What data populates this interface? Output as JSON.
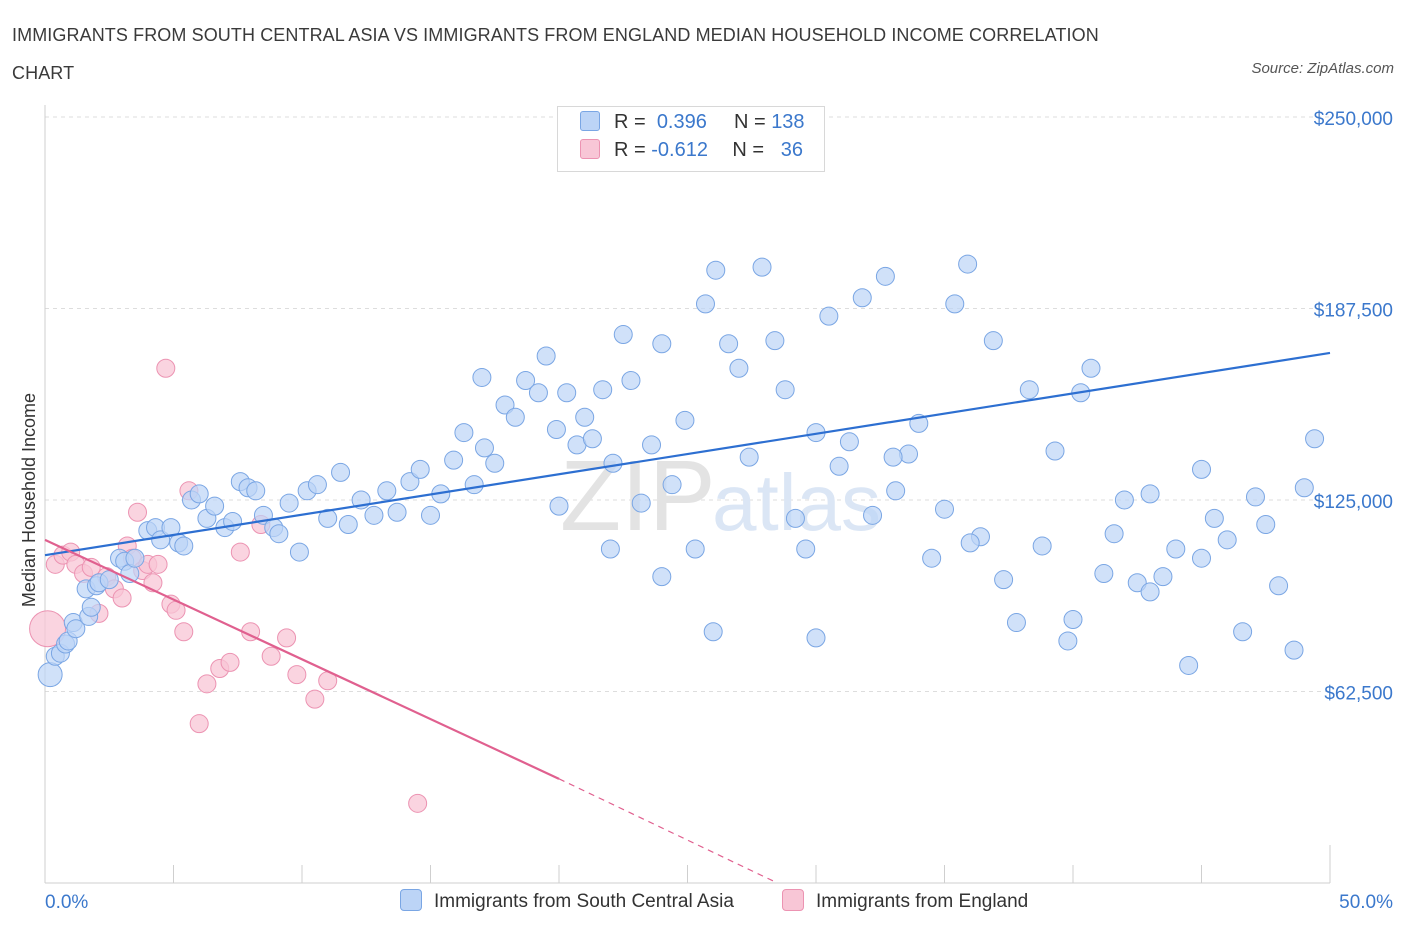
{
  "header": {
    "title": "IMMIGRANTS FROM SOUTH CENTRAL ASIA VS IMMIGRANTS FROM ENGLAND MEDIAN HOUSEHOLD INCOME CORRELATION CHART",
    "source": "Source: ZipAtlas.com"
  },
  "legend": {
    "r_label": "R =",
    "n_label": "N =",
    "series1": {
      "r": "0.396",
      "n": "138"
    },
    "series2": {
      "r": "-0.612",
      "n": "36"
    }
  },
  "bottom_legend": {
    "series1": "Immigrants from South Central Asia",
    "series2": "Immigrants from England"
  },
  "watermark": {
    "zip": "ZIP",
    "atlas": "atlas"
  },
  "colors": {
    "blue_fill": "#bcd4f6",
    "blue_stroke": "#7aa6e4",
    "blue_line": "#2d6fd1",
    "pink_fill": "#f8c6d6",
    "pink_stroke": "#ec93b2",
    "pink_line": "#e0608f",
    "tick_text": "#3b78cc",
    "grid": "#dddddd"
  },
  "chart_data": {
    "type": "scatter",
    "title": "IMMIGRANTS FROM SOUTH CENTRAL ASIA VS IMMIGRANTS FROM ENGLAND MEDIAN HOUSEHOLD INCOME CORRELATION CHART",
    "xlabel": "",
    "ylabel": "Median Household Income",
    "xlim": [
      0,
      50
    ],
    "ylim": [
      0,
      250000
    ],
    "x_tick_labels": [
      "0.0%",
      "50.0%"
    ],
    "y_ticks": [
      62500,
      125000,
      187500,
      250000
    ],
    "y_tick_labels": [
      "$62,500",
      "$125,000",
      "$187,500",
      "$250,000"
    ],
    "grid": true,
    "series": [
      {
        "name": "Immigrants from South Central Asia",
        "r": 0.396,
        "n": 138,
        "trend": [
          [
            0,
            107000
          ],
          [
            50,
            173000
          ]
        ],
        "points": [
          [
            0.2,
            68000
          ],
          [
            0.4,
            74000
          ],
          [
            0.6,
            75000
          ],
          [
            0.8,
            78000
          ],
          [
            0.9,
            79000
          ],
          [
            1.1,
            85000
          ],
          [
            1.2,
            83000
          ],
          [
            1.7,
            87000
          ],
          [
            1.8,
            90000
          ],
          [
            1.6,
            96000
          ],
          [
            2.0,
            97000
          ],
          [
            2.1,
            98000
          ],
          [
            2.5,
            99000
          ],
          [
            2.9,
            106000
          ],
          [
            3.1,
            105000
          ],
          [
            3.3,
            101000
          ],
          [
            3.5,
            106000
          ],
          [
            4.0,
            115000
          ],
          [
            4.3,
            116000
          ],
          [
            4.5,
            112000
          ],
          [
            4.9,
            116000
          ],
          [
            5.2,
            111000
          ],
          [
            5.4,
            110000
          ],
          [
            5.7,
            125000
          ],
          [
            6.0,
            127000
          ],
          [
            6.3,
            119000
          ],
          [
            6.6,
            123000
          ],
          [
            7.0,
            116000
          ],
          [
            7.3,
            118000
          ],
          [
            7.6,
            131000
          ],
          [
            7.9,
            129000
          ],
          [
            8.2,
            128000
          ],
          [
            8.5,
            120000
          ],
          [
            8.9,
            116000
          ],
          [
            9.1,
            114000
          ],
          [
            9.5,
            124000
          ],
          [
            9.9,
            108000
          ],
          [
            10.2,
            128000
          ],
          [
            10.6,
            130000
          ],
          [
            11.0,
            119000
          ],
          [
            11.5,
            134000
          ],
          [
            11.8,
            117000
          ],
          [
            12.3,
            125000
          ],
          [
            12.8,
            120000
          ],
          [
            13.3,
            128000
          ],
          [
            13.7,
            121000
          ],
          [
            14.2,
            131000
          ],
          [
            14.6,
            135000
          ],
          [
            15.0,
            120000
          ],
          [
            15.4,
            127000
          ],
          [
            15.9,
            138000
          ],
          [
            16.3,
            147000
          ],
          [
            16.7,
            130000
          ],
          [
            17.1,
            142000
          ],
          [
            17.5,
            137000
          ],
          [
            17.9,
            156000
          ],
          [
            18.3,
            152000
          ],
          [
            18.7,
            164000
          ],
          [
            19.2,
            160000
          ],
          [
            19.5,
            172000
          ],
          [
            19.9,
            148000
          ],
          [
            20.3,
            160000
          ],
          [
            20.7,
            143000
          ],
          [
            21.0,
            152000
          ],
          [
            21.3,
            145000
          ],
          [
            21.7,
            161000
          ],
          [
            22.1,
            137000
          ],
          [
            22.5,
            179000
          ],
          [
            22.8,
            164000
          ],
          [
            23.2,
            124000
          ],
          [
            23.6,
            143000
          ],
          [
            24.0,
            176000
          ],
          [
            24.4,
            130000
          ],
          [
            24.9,
            151000
          ],
          [
            25.3,
            109000
          ],
          [
            25.7,
            189000
          ],
          [
            26.1,
            200000
          ],
          [
            26.6,
            176000
          ],
          [
            27.0,
            168000
          ],
          [
            27.4,
            139000
          ],
          [
            27.9,
            201000
          ],
          [
            28.4,
            177000
          ],
          [
            28.8,
            161000
          ],
          [
            29.2,
            119000
          ],
          [
            29.6,
            109000
          ],
          [
            30.0,
            147000
          ],
          [
            30.5,
            185000
          ],
          [
            30.9,
            136000
          ],
          [
            31.3,
            144000
          ],
          [
            31.8,
            191000
          ],
          [
            32.2,
            120000
          ],
          [
            32.7,
            198000
          ],
          [
            33.1,
            128000
          ],
          [
            33.6,
            140000
          ],
          [
            34.0,
            150000
          ],
          [
            34.5,
            106000
          ],
          [
            35.0,
            122000
          ],
          [
            35.4,
            189000
          ],
          [
            35.9,
            202000
          ],
          [
            36.4,
            113000
          ],
          [
            36.9,
            177000
          ],
          [
            37.3,
            99000
          ],
          [
            37.8,
            85000
          ],
          [
            38.3,
            161000
          ],
          [
            38.8,
            110000
          ],
          [
            39.3,
            141000
          ],
          [
            39.8,
            79000
          ],
          [
            40.3,
            160000
          ],
          [
            40.7,
            168000
          ],
          [
            41.2,
            101000
          ],
          [
            41.6,
            114000
          ],
          [
            42.0,
            125000
          ],
          [
            42.5,
            98000
          ],
          [
            43.0,
            127000
          ],
          [
            43.5,
            100000
          ],
          [
            44.0,
            109000
          ],
          [
            44.5,
            71000
          ],
          [
            45.0,
            135000
          ],
          [
            45.5,
            119000
          ],
          [
            46.0,
            112000
          ],
          [
            46.6,
            82000
          ],
          [
            47.1,
            126000
          ],
          [
            47.5,
            117000
          ],
          [
            48.0,
            97000
          ],
          [
            48.6,
            76000
          ],
          [
            49.0,
            129000
          ],
          [
            49.4,
            145000
          ],
          [
            17.0,
            165000
          ],
          [
            26.0,
            82000
          ],
          [
            30.0,
            80000
          ],
          [
            33.0,
            139000
          ],
          [
            36.0,
            111000
          ],
          [
            40.0,
            86000
          ],
          [
            43.0,
            95000
          ],
          [
            45.0,
            106000
          ],
          [
            20.0,
            123000
          ],
          [
            22.0,
            109000
          ],
          [
            24.0,
            100000
          ]
        ]
      },
      {
        "name": "Immigrants from England",
        "r": -0.612,
        "n": 36,
        "trend": [
          [
            0,
            112000
          ],
          [
            20,
            34000
          ]
        ],
        "trend_extension": [
          [
            20,
            34000
          ],
          [
            28.5,
            0
          ]
        ],
        "points": [
          [
            0.1,
            83000
          ],
          [
            0.4,
            104000
          ],
          [
            0.7,
            107000
          ],
          [
            1.0,
            108000
          ],
          [
            1.2,
            104000
          ],
          [
            1.5,
            101000
          ],
          [
            1.8,
            103000
          ],
          [
            2.1,
            88000
          ],
          [
            2.4,
            100000
          ],
          [
            2.7,
            96000
          ],
          [
            3.0,
            93000
          ],
          [
            3.2,
            110000
          ],
          [
            3.4,
            106000
          ],
          [
            3.6,
            121000
          ],
          [
            3.8,
            102000
          ],
          [
            4.0,
            104000
          ],
          [
            4.2,
            98000
          ],
          [
            4.4,
            104000
          ],
          [
            4.7,
            168000
          ],
          [
            4.9,
            91000
          ],
          [
            5.1,
            89000
          ],
          [
            5.4,
            82000
          ],
          [
            5.6,
            128000
          ],
          [
            6.0,
            52000
          ],
          [
            6.3,
            65000
          ],
          [
            6.8,
            70000
          ],
          [
            7.2,
            72000
          ],
          [
            7.6,
            108000
          ],
          [
            8.0,
            82000
          ],
          [
            8.4,
            117000
          ],
          [
            8.8,
            74000
          ],
          [
            9.4,
            80000
          ],
          [
            9.8,
            68000
          ],
          [
            10.5,
            60000
          ],
          [
            11.0,
            66000
          ],
          [
            14.5,
            26000
          ]
        ]
      }
    ]
  }
}
